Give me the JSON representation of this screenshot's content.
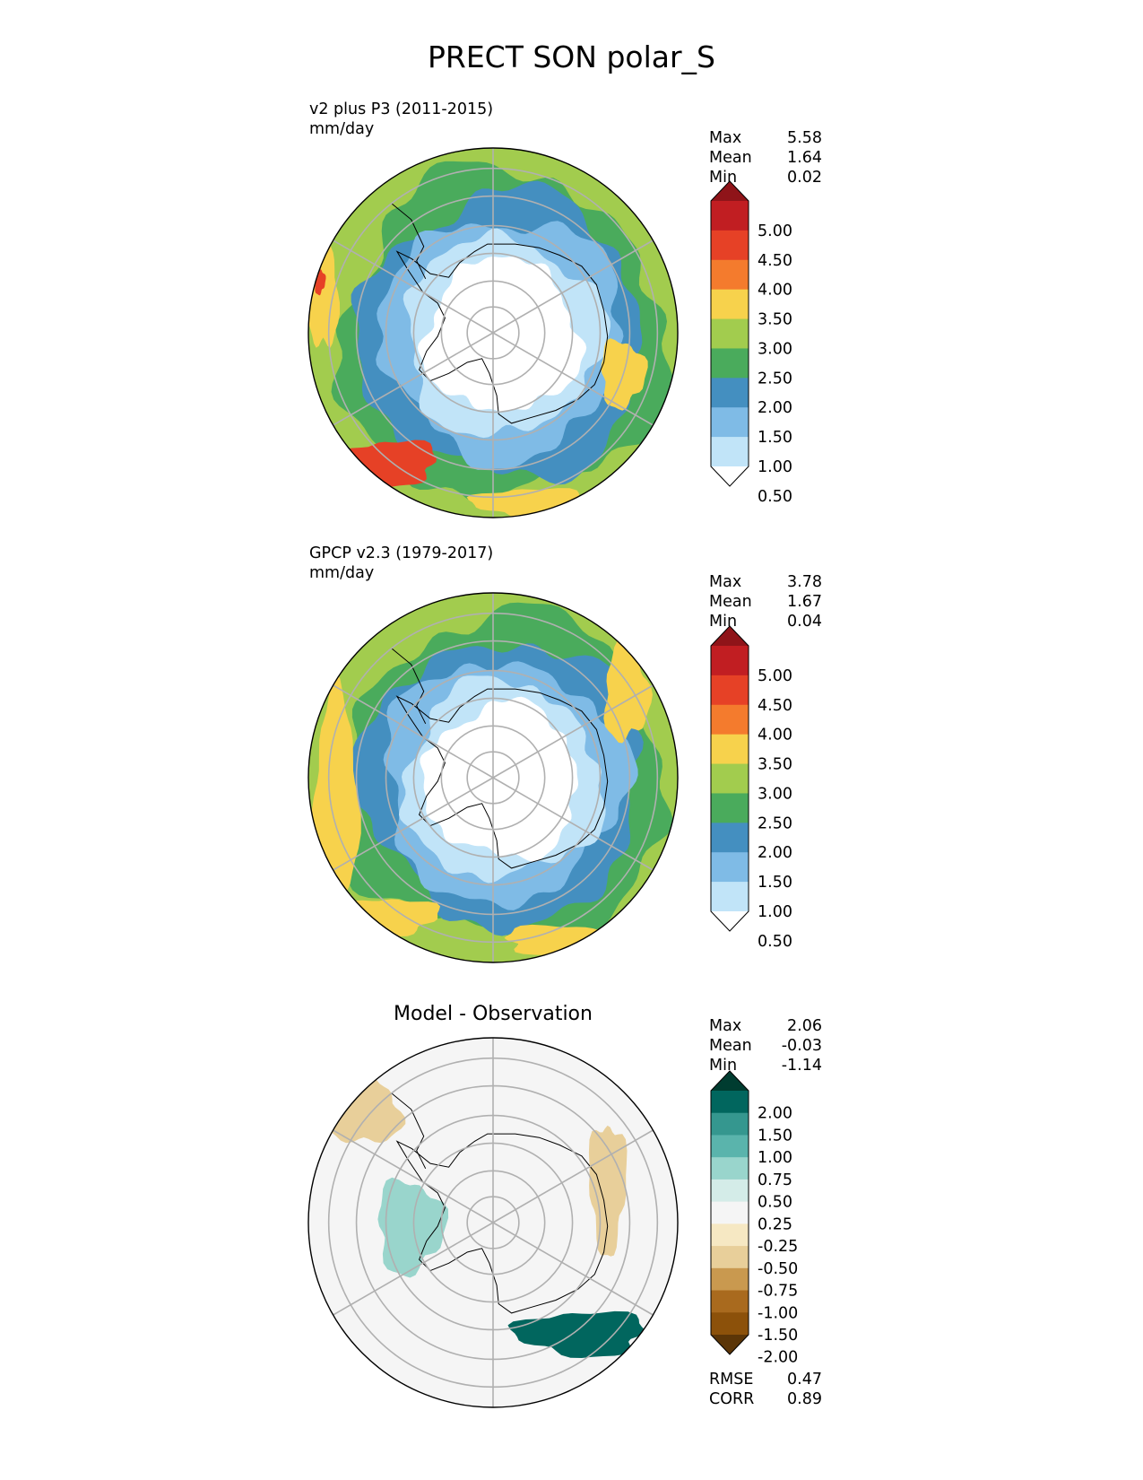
{
  "title": "PRECT SON polar_S",
  "chart_data": [
    {
      "type": "heatmap",
      "projection": "south-polar-stereographic",
      "title": "v2 plus P3 (2011-2015)",
      "units": "mm/day",
      "stats": [
        {
          "label": "Max",
          "value": "5.58"
        },
        {
          "label": "Mean",
          "value": "1.64"
        },
        {
          "label": "Min",
          "value": "0.02"
        }
      ],
      "colorbar": {
        "ticks": [
          "5.00",
          "4.50",
          "4.00",
          "3.50",
          "3.00",
          "2.50",
          "2.00",
          "1.50",
          "1.00",
          "0.50"
        ],
        "colors": [
          "#8f1419",
          "#c11e22",
          "#e64126",
          "#f47b2d",
          "#f7d24c",
          "#a2cc4e",
          "#4aab5c",
          "#448fc0",
          "#7fbbe6",
          "#c1e4f8",
          "#ffffff"
        ],
        "extend": "both"
      },
      "rings": [
        {
          "level": 0.4,
          "color": "#ffffff"
        },
        {
          "level": 0.9,
          "color": "#c1e4f8"
        },
        {
          "level": 1.3,
          "color": "#7fbbe6"
        },
        {
          "level": 1.8,
          "color": "#448fc0"
        },
        {
          "level": 2.2,
          "color": "#4aab5c"
        },
        {
          "level": 2.6,
          "color": "#a2cc4e"
        }
      ],
      "blobs": [
        {
          "level": 3.2,
          "color": "#f7d24c"
        },
        {
          "level": 4.3,
          "color": "#e64126"
        }
      ]
    },
    {
      "type": "heatmap",
      "projection": "south-polar-stereographic",
      "title": "GPCP v2.3 (1979-2017)",
      "units": "mm/day",
      "stats": [
        {
          "label": "Max",
          "value": "3.78"
        },
        {
          "label": "Mean",
          "value": "1.67"
        },
        {
          "label": "Min",
          "value": "0.04"
        }
      ],
      "colorbar": {
        "ticks": [
          "5.00",
          "4.50",
          "4.00",
          "3.50",
          "3.00",
          "2.50",
          "2.00",
          "1.50",
          "1.00",
          "0.50"
        ],
        "colors": [
          "#8f1419",
          "#c11e22",
          "#e64126",
          "#f47b2d",
          "#f7d24c",
          "#a2cc4e",
          "#4aab5c",
          "#448fc0",
          "#7fbbe6",
          "#c1e4f8",
          "#ffffff"
        ],
        "extend": "both"
      },
      "rings": [
        {
          "level": 0.4,
          "color": "#ffffff"
        },
        {
          "level": 0.9,
          "color": "#c1e4f8"
        },
        {
          "level": 1.3,
          "color": "#7fbbe6"
        },
        {
          "level": 1.7,
          "color": "#448fc0"
        },
        {
          "level": 2.2,
          "color": "#4aab5c"
        },
        {
          "level": 2.6,
          "color": "#a2cc4e"
        }
      ],
      "blobs": [
        {
          "level": 3.2,
          "color": "#f7d24c"
        }
      ]
    },
    {
      "type": "heatmap",
      "projection": "south-polar-stereographic",
      "title": "Model - Observation",
      "units": "",
      "stats": [
        {
          "label": "Max",
          "value": "2.06"
        },
        {
          "label": "Mean",
          "value": "-0.03"
        },
        {
          "label": "Min",
          "value": "-1.14"
        }
      ],
      "extra_stats": [
        {
          "label": "RMSE",
          "value": "0.47"
        },
        {
          "label": "CORR",
          "value": "0.89"
        }
      ],
      "colorbar": {
        "ticks": [
          "2.00",
          "1.50",
          "1.00",
          "0.75",
          "0.50",
          "0.25",
          "-0.25",
          "-0.50",
          "-0.75",
          "-1.00",
          "-1.50",
          "-2.00"
        ],
        "colors": [
          "#003c30",
          "#01665e",
          "#35978f",
          "#5ab4ac",
          "#99d5cc",
          "#d4ece8",
          "#f5f5f5",
          "#f6e8c3",
          "#e8cf9a",
          "#c9994f",
          "#a96a1e",
          "#8c510a",
          "#5b3507"
        ],
        "extend": "both"
      },
      "rings": [
        {
          "level": 0.0,
          "color": "#f5f5f5"
        }
      ],
      "blobs": [
        {
          "level": -0.6,
          "color": "#e8cf9a"
        },
        {
          "level": 0.6,
          "color": "#99d5cc"
        },
        {
          "level": 1.6,
          "color": "#01665e"
        }
      ]
    }
  ]
}
